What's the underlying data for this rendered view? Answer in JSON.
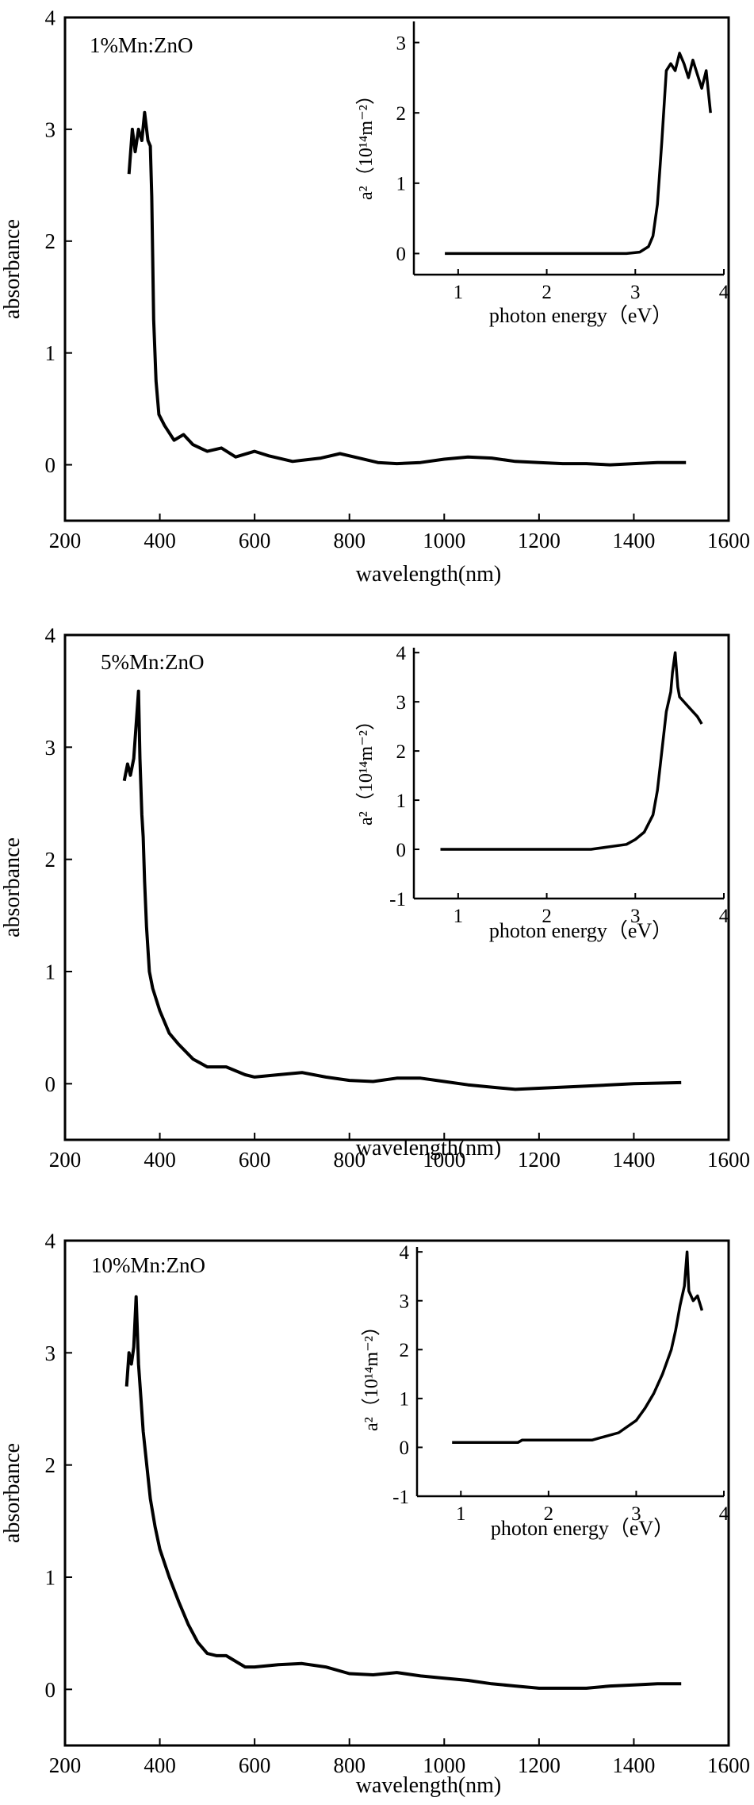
{
  "chart_data": [
    {
      "type": "line",
      "label": "1%Mn:ZnO",
      "xlabel": "wavelength(nm)",
      "ylabel": "absorbance",
      "xlim": [
        200,
        1600
      ],
      "ylim": [
        -0.5,
        4
      ],
      "xticks": [
        200,
        400,
        600,
        800,
        1000,
        1200,
        1400,
        1600
      ],
      "yticks": [
        0,
        1,
        2,
        3,
        4
      ],
      "series": [
        {
          "name": "1%Mn:ZnO",
          "x": [
            335,
            342,
            348,
            355,
            362,
            368,
            375,
            380,
            383,
            387,
            392,
            398,
            410,
            430,
            450,
            470,
            500,
            530,
            560,
            600,
            630,
            680,
            740,
            780,
            820,
            860,
            900,
            950,
            1000,
            1050,
            1100,
            1150,
            1200,
            1250,
            1300,
            1350,
            1400,
            1450,
            1510
          ],
          "y": [
            2.6,
            3.0,
            2.8,
            3.0,
            2.9,
            3.15,
            2.9,
            2.85,
            2.4,
            1.3,
            0.75,
            0.45,
            0.35,
            0.22,
            0.27,
            0.18,
            0.12,
            0.15,
            0.07,
            0.12,
            0.08,
            0.03,
            0.06,
            0.1,
            0.06,
            0.02,
            0.01,
            0.02,
            0.05,
            0.07,
            0.06,
            0.03,
            0.02,
            0.01,
            0.01,
            0.0,
            0.01,
            0.02,
            0.02
          ]
        }
      ],
      "inset": {
        "xlabel": "photon energy（eV）",
        "ylabel": "a²（10¹⁴m⁻²）",
        "xlim": [
          0.5,
          4
        ],
        "ylim": [
          -0.3,
          3.3
        ],
        "xticks": [
          1,
          2,
          3,
          4
        ],
        "yticks": [
          0,
          1,
          2,
          3
        ],
        "series": [
          {
            "name": "a2",
            "x": [
              0.85,
              1.5,
              2.0,
              2.5,
              2.9,
              3.05,
              3.15,
              3.2,
              3.25,
              3.3,
              3.35,
              3.4,
              3.45,
              3.5,
              3.55,
              3.6,
              3.65,
              3.7,
              3.75,
              3.8,
              3.85
            ],
            "y": [
              0.0,
              0.0,
              0.0,
              0.0,
              0.0,
              0.02,
              0.1,
              0.25,
              0.7,
              1.6,
              2.6,
              2.7,
              2.6,
              2.85,
              2.7,
              2.5,
              2.75,
              2.55,
              2.35,
              2.6,
              2.0
            ]
          }
        ]
      }
    },
    {
      "type": "line",
      "label": "5%Mn:ZnO",
      "xlabel": "wavelength(nm)",
      "ylabel": "absorbance",
      "xlim": [
        200,
        1600
      ],
      "ylim": [
        -0.5,
        4
      ],
      "xticks": [
        200,
        400,
        600,
        800,
        1000,
        1200,
        1400,
        1600
      ],
      "yticks": [
        0,
        1,
        2,
        3,
        4
      ],
      "series": [
        {
          "name": "5%Mn:ZnO",
          "x": [
            325,
            332,
            338,
            345,
            350,
            355,
            358,
            362,
            365,
            368,
            372,
            378,
            385,
            400,
            420,
            440,
            470,
            500,
            540,
            580,
            600,
            650,
            700,
            750,
            800,
            850,
            900,
            950,
            1000,
            1050,
            1100,
            1150,
            1200,
            1250,
            1300,
            1400,
            1500
          ],
          "y": [
            2.7,
            2.85,
            2.75,
            2.9,
            3.2,
            3.5,
            2.9,
            2.4,
            2.2,
            1.8,
            1.4,
            1.0,
            0.85,
            0.65,
            0.45,
            0.35,
            0.22,
            0.15,
            0.15,
            0.08,
            0.06,
            0.08,
            0.1,
            0.06,
            0.03,
            0.02,
            0.05,
            0.05,
            0.02,
            -0.01,
            -0.03,
            -0.05,
            -0.04,
            -0.03,
            -0.02,
            0.0,
            0.01
          ]
        }
      ],
      "inset": {
        "xlabel": "photon energy（eV）",
        "ylabel": "a²（10¹⁴m⁻²）",
        "xlim": [
          0.5,
          4
        ],
        "ylim": [
          -1,
          4.1
        ],
        "xticks": [
          1,
          2,
          3,
          4
        ],
        "yticks": [
          -1,
          0,
          1,
          2,
          3,
          4
        ],
        "series": [
          {
            "name": "a2",
            "x": [
              0.8,
              1.5,
              2.0,
              2.5,
              2.7,
              2.9,
              3.0,
              3.1,
              3.2,
              3.25,
              3.3,
              3.35,
              3.4,
              3.42,
              3.45,
              3.48,
              3.5,
              3.6,
              3.7,
              3.75
            ],
            "y": [
              0.0,
              0.0,
              0.0,
              0.0,
              0.05,
              0.1,
              0.2,
              0.35,
              0.7,
              1.2,
              2.0,
              2.8,
              3.2,
              3.6,
              4.0,
              3.3,
              3.1,
              2.9,
              2.7,
              2.55
            ]
          }
        ]
      }
    },
    {
      "type": "line",
      "label": "10%Mn:ZnO",
      "xlabel": "wavelength(nm)",
      "ylabel": "absorbance",
      "xlim": [
        200,
        1600
      ],
      "ylim": [
        -0.5,
        4
      ],
      "xticks": [
        200,
        400,
        600,
        800,
        1000,
        1200,
        1400,
        1600
      ],
      "yticks": [
        0,
        1,
        2,
        3,
        4
      ],
      "series": [
        {
          "name": "10%Mn:ZnO",
          "x": [
            330,
            335,
            340,
            345,
            350,
            355,
            360,
            365,
            370,
            380,
            390,
            400,
            420,
            440,
            460,
            480,
            500,
            520,
            540,
            560,
            580,
            600,
            650,
            700,
            750,
            800,
            850,
            900,
            950,
            1000,
            1050,
            1100,
            1150,
            1200,
            1250,
            1300,
            1350,
            1400,
            1450,
            1500
          ],
          "y": [
            2.7,
            3.0,
            2.9,
            3.05,
            3.5,
            2.9,
            2.6,
            2.3,
            2.1,
            1.7,
            1.45,
            1.25,
            1.0,
            0.78,
            0.58,
            0.42,
            0.32,
            0.3,
            0.3,
            0.25,
            0.2,
            0.2,
            0.22,
            0.23,
            0.2,
            0.14,
            0.13,
            0.15,
            0.12,
            0.1,
            0.08,
            0.05,
            0.03,
            0.01,
            0.01,
            0.01,
            0.03,
            0.04,
            0.05,
            0.05
          ]
        }
      ],
      "inset": {
        "xlabel": "photon energy（eV）",
        "ylabel": "a²（10¹⁴m⁻²）",
        "xlim": [
          0.5,
          4
        ],
        "ylim": [
          -1,
          4.1
        ],
        "xticks": [
          1,
          2,
          3,
          4
        ],
        "yticks": [
          -1,
          0,
          1,
          2,
          3,
          4
        ],
        "series": [
          {
            "name": "a2",
            "x": [
              0.9,
              1.5,
              1.65,
              1.7,
              2.0,
              2.5,
              2.6,
              2.8,
              3.0,
              3.1,
              3.2,
              3.3,
              3.4,
              3.45,
              3.5,
              3.55,
              3.58,
              3.6,
              3.65,
              3.7,
              3.75
            ],
            "y": [
              0.1,
              0.1,
              0.1,
              0.15,
              0.15,
              0.15,
              0.2,
              0.3,
              0.55,
              0.8,
              1.1,
              1.5,
              2.0,
              2.4,
              2.9,
              3.3,
              4.0,
              3.2,
              3.0,
              3.1,
              2.8
            ]
          }
        ]
      }
    }
  ]
}
